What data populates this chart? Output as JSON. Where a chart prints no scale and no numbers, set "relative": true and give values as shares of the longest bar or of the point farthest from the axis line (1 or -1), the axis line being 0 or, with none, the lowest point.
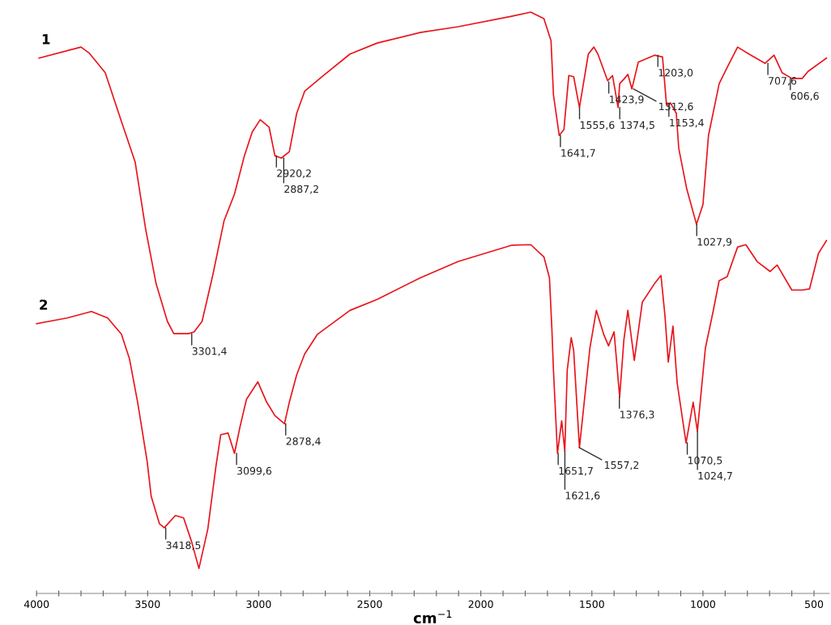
{
  "chart_data": {
    "type": "line",
    "relative": true,
    "xlabel": "cm$^{−1}$",
    "xlim": [
      4000,
      431
    ],
    "xticks": [
      {
        "value": 4000,
        "label": "4000"
      },
      {
        "value": 3900,
        "label": null
      },
      {
        "value": 3800,
        "label": null
      },
      {
        "value": 3700,
        "label": null
      },
      {
        "value": 3600,
        "label": null
      },
      {
        "value": 3500,
        "label": "3500"
      },
      {
        "value": 3400,
        "label": null
      },
      {
        "value": 3300,
        "label": null
      },
      {
        "value": 3200,
        "label": null
      },
      {
        "value": 3100,
        "label": null
      },
      {
        "value": 3000,
        "label": "3000"
      },
      {
        "value": 2900,
        "label": null
      },
      {
        "value": 2800,
        "label": null
      },
      {
        "value": 2700,
        "label": null
      },
      {
        "value": 2600,
        "label": null
      },
      {
        "value": 2500,
        "label": "2500"
      },
      {
        "value": 2400,
        "label": null
      },
      {
        "value": 2300,
        "label": null
      },
      {
        "value": 2200,
        "label": null
      },
      {
        "value": 2100,
        "label": null
      },
      {
        "value": 2000,
        "label": "2000"
      },
      {
        "value": 1900,
        "label": null
      },
      {
        "value": 1800,
        "label": null
      },
      {
        "value": 1700,
        "label": null
      },
      {
        "value": 1600,
        "label": null
      },
      {
        "value": 1500,
        "label": "1500"
      },
      {
        "value": 1400,
        "label": null
      },
      {
        "value": 1300,
        "label": null
      },
      {
        "value": 1200,
        "label": null
      },
      {
        "value": 1100,
        "label": null
      },
      {
        "value": 1000,
        "label": "1000"
      },
      {
        "value": 900,
        "label": null
      },
      {
        "value": 800,
        "label": null
      },
      {
        "value": 700,
        "label": null
      },
      {
        "value": 600,
        "label": null
      },
      {
        "value": 500,
        "label": "500"
      }
    ],
    "grid": false,
    "legend": false,
    "marker": "none",
    "line_style": "solid",
    "series": [
      {
        "name": "1",
        "color": "#e8141b",
        "x": [
          3989,
          3800,
          3764,
          3691,
          3618,
          3556,
          3509,
          3462,
          3411,
          3382,
          3316,
          3291,
          3255,
          3207,
          3156,
          3109,
          3065,
          3029,
          2993,
          2953,
          2927,
          2898,
          2862,
          2829,
          2793,
          2709,
          2589,
          2466,
          2273,
          2102,
          1862,
          1775,
          1716,
          1684,
          1673,
          1647,
          1626,
          1604,
          1582,
          1556,
          1516,
          1491,
          1473,
          1429,
          1407,
          1382,
          1375,
          1353,
          1338,
          1320,
          1291,
          1218,
          1182,
          1164,
          1146,
          1120,
          1109,
          1073,
          1029,
          1000,
          975,
          927,
          891,
          844,
          793,
          720,
          680,
          644,
          600,
          553,
          527,
          444
        ],
        "values": [
          0.921,
          0.94,
          0.93,
          0.896,
          0.812,
          0.742,
          0.627,
          0.533,
          0.468,
          0.447,
          0.447,
          0.45,
          0.468,
          0.547,
          0.641,
          0.687,
          0.752,
          0.794,
          0.815,
          0.802,
          0.753,
          0.749,
          0.76,
          0.826,
          0.864,
          0.891,
          0.928,
          0.947,
          0.965,
          0.975,
          0.993,
          1.0,
          0.989,
          0.951,
          0.858,
          0.788,
          0.798,
          0.891,
          0.889,
          0.836,
          0.928,
          0.94,
          0.928,
          0.882,
          0.891,
          0.836,
          0.877,
          0.886,
          0.893,
          0.868,
          0.914,
          0.926,
          0.923,
          0.84,
          0.844,
          0.826,
          0.766,
          0.696,
          0.635,
          0.669,
          0.788,
          0.877,
          0.905,
          0.94,
          0.928,
          0.912,
          0.926,
          0.896,
          0.886,
          0.886,
          0.898,
          0.921
        ]
      },
      {
        "name": "2",
        "color": "#e8141b",
        "x": [
          4000,
          3862,
          3753,
          3680,
          3618,
          3582,
          3545,
          3502,
          3484,
          3447,
          3425,
          3375,
          3338,
          3302,
          3269,
          3229,
          3193,
          3171,
          3138,
          3109,
          3084,
          3055,
          3004,
          2964,
          2927,
          2884,
          2862,
          2829,
          2793,
          2735,
          2589,
          2466,
          2273,
          2102,
          1862,
          1775,
          1716,
          1691,
          1680,
          1673,
          1655,
          1636,
          1622,
          1611,
          1593,
          1582,
          1556,
          1509,
          1480,
          1447,
          1425,
          1400,
          1375,
          1356,
          1338,
          1309,
          1273,
          1218,
          1189,
          1171,
          1156,
          1135,
          1116,
          1076,
          1044,
          1025,
          989,
          956,
          927,
          891,
          844,
          807,
          756,
          698,
          666,
          600,
          553,
          520,
          480,
          444
        ],
        "values": [
          0.464,
          0.474,
          0.485,
          0.474,
          0.446,
          0.404,
          0.329,
          0.227,
          0.167,
          0.12,
          0.113,
          0.134,
          0.13,
          0.089,
          0.043,
          0.111,
          0.217,
          0.273,
          0.276,
          0.241,
          0.287,
          0.334,
          0.364,
          0.329,
          0.306,
          0.292,
          0.329,
          0.376,
          0.412,
          0.446,
          0.487,
          0.506,
          0.543,
          0.571,
          0.599,
          0.6,
          0.579,
          0.543,
          0.454,
          0.384,
          0.241,
          0.297,
          0.245,
          0.384,
          0.44,
          0.418,
          0.251,
          0.422,
          0.487,
          0.446,
          0.426,
          0.45,
          0.338,
          0.436,
          0.487,
          0.401,
          0.501,
          0.533,
          0.547,
          0.478,
          0.398,
          0.46,
          0.362,
          0.259,
          0.329,
          0.279,
          0.422,
          0.482,
          0.538,
          0.545,
          0.596,
          0.6,
          0.571,
          0.554,
          0.565,
          0.522,
          0.522,
          0.524,
          0.585,
          0.607
        ]
      }
    ],
    "annotations": [
      {
        "text": "3301,4",
        "x": 3301.4,
        "y": 0.447
      },
      {
        "text": "2920,2",
        "x": 2920.2,
        "y": 0.753
      },
      {
        "text": "2887,2",
        "x": 2887.2,
        "y": 0.749
      },
      {
        "text": "1641,7",
        "x": 1641.7,
        "y": 0.788
      },
      {
        "text": "1555,6",
        "x": 1555.6,
        "y": 0.836
      },
      {
        "text": "1423,9",
        "x": 1423.9,
        "y": 0.88
      },
      {
        "text": "1374,5",
        "x": 1374.5,
        "y": 0.836
      },
      {
        "text": "1312,6",
        "x": 1312.6,
        "y": 0.868
      },
      {
        "text": "1203,0",
        "x": 1203.0,
        "y": 0.926
      },
      {
        "text": "1153,4",
        "x": 1153.4,
        "y": 0.84
      },
      {
        "text": "1027,9",
        "x": 1027.9,
        "y": 0.635
      },
      {
        "text": "707,6",
        "x": 707.6,
        "y": 0.912
      },
      {
        "text": "606,6",
        "x": 606.6,
        "y": 0.886
      },
      {
        "text": "3418,5",
        "x": 3418.5,
        "y": 0.113
      },
      {
        "text": "3099,6",
        "x": 3099.6,
        "y": 0.241
      },
      {
        "text": "2878,4",
        "x": 2878.4,
        "y": 0.292
      },
      {
        "text": "1651,7",
        "x": 1651.7,
        "y": 0.241
      },
      {
        "text": "1621,6",
        "x": 1621.6,
        "y": 0.245
      },
      {
        "text": "1557,2",
        "x": 1557.2,
        "y": 0.251
      },
      {
        "text": "1376,3",
        "x": 1376.3,
        "y": 0.338
      },
      {
        "text": "1070,5",
        "x": 1070.5,
        "y": 0.259
      },
      {
        "text": "1024,7",
        "x": 1024.7,
        "y": 0.279
      }
    ]
  }
}
